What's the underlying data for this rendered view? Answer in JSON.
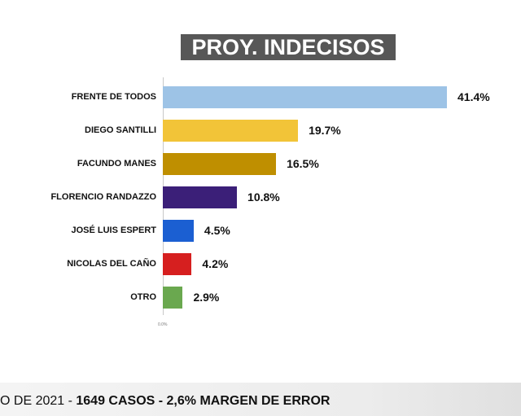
{
  "chart_data": {
    "type": "bar",
    "orientation": "horizontal",
    "title": "PROY. INDECISOS",
    "categories": [
      "FRENTE DE TODOS",
      "DIEGO SANTILLI",
      "FACUNDO MANES",
      "FLORENCIO RANDAZZO",
      "JOSÉ LUIS ESPERT",
      "NICOLAS DEL CAÑO",
      "OTRO"
    ],
    "values": [
      41.4,
      19.7,
      16.5,
      10.8,
      4.5,
      4.2,
      2.9
    ],
    "value_labels": [
      "41.4%",
      "19.7%",
      "16.5%",
      "10.8%",
      "4.5%",
      "4.2%",
      "2.9%"
    ],
    "colors": [
      "#9dc3e6",
      "#f2c438",
      "#bf8f00",
      "#3b1f78",
      "#1b5fd2",
      "#d61f1f",
      "#6aa84f"
    ],
    "xlim": [
      0,
      50
    ],
    "xticks": [
      {
        "value": 0,
        "label": "0.0%"
      }
    ]
  },
  "footer": {
    "prefix": "O DE 2021 - ",
    "bold": "1649 CASOS - 2,6% MARGEN DE ERROR"
  }
}
